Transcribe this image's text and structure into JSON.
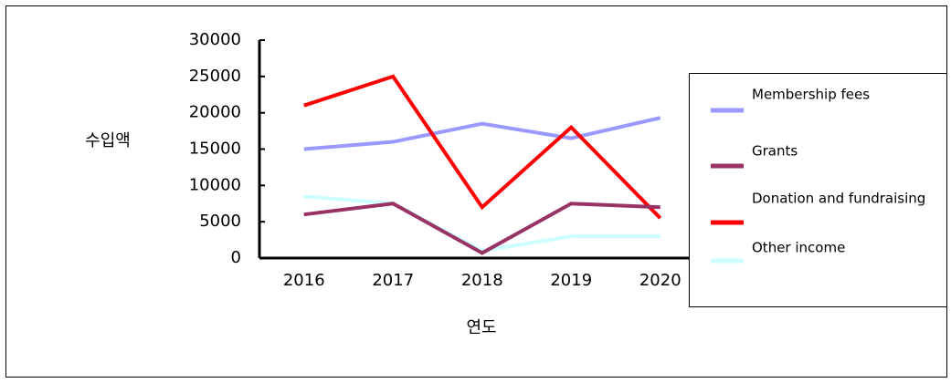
{
  "chart_data": {
    "type": "line",
    "x_label": "연도",
    "y_label": "수입액",
    "categories": [
      "2016",
      "2017",
      "2018",
      "2019",
      "2020"
    ],
    "series": [
      {
        "name": "Membership fees",
        "color": "#9999ff",
        "values": [
          15000,
          16000,
          18500,
          16500,
          19300
        ]
      },
      {
        "name": "Grants",
        "color": "#993366",
        "values": [
          6000,
          7500,
          700,
          7500,
          7000
        ]
      },
      {
        "name": "Donation and fundraising",
        "color": "#ff0000",
        "values": [
          21000,
          25000,
          7000,
          18000,
          5500
        ]
      },
      {
        "name": "Other income",
        "color": "#ccffff",
        "values": [
          8500,
          7500,
          1000,
          3000,
          3000
        ]
      }
    ],
    "ylim": [
      0,
      30000
    ],
    "yticks": [
      0,
      5000,
      10000,
      15000,
      20000,
      25000,
      30000
    ],
    "legend": "right"
  }
}
